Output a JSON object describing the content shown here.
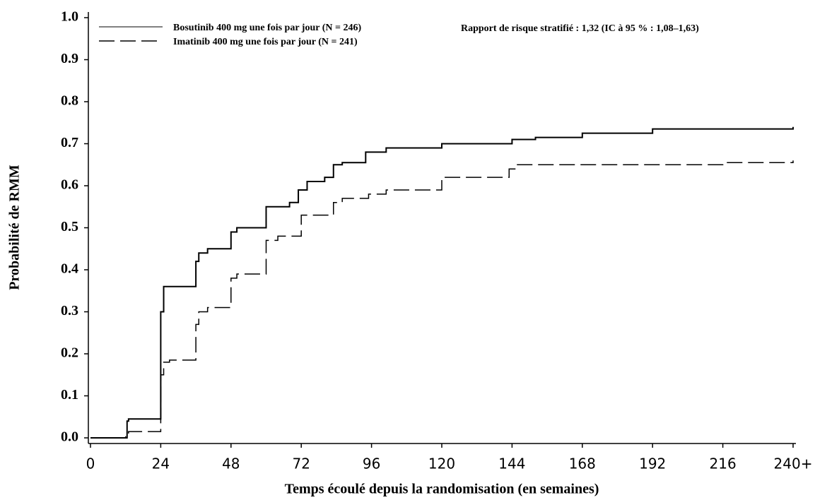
{
  "chart_data": {
    "type": "step",
    "xlabel": "Temps écoulé depuis la randomisation (en semaines)",
    "ylabel": "Probabilité de RMM",
    "annotation": "Rapport de risque stratifié : 1,32 (IC à 95 % : 1,08–1,63)",
    "xlim": [
      0,
      240
    ],
    "ylim": [
      0,
      1
    ],
    "xticks": [
      0,
      24,
      48,
      72,
      96,
      120,
      144,
      168,
      192,
      216,
      {
        "value": 240,
        "label": "240+"
      }
    ],
    "yticks": [
      {
        "value": 0,
        "label": "0.0"
      },
      0.1,
      0.2,
      0.3,
      0.4,
      0.5,
      0.6,
      0.7,
      0.8,
      0.9,
      {
        "value": 1,
        "label": "1.0"
      }
    ],
    "legend": "upper left",
    "series": [
      {
        "name": "Bosutinib 400 mg une fois par jour (N = 246)",
        "color": "#000000",
        "dash": "solid",
        "x": [
          0,
          12.5,
          13,
          24,
          25,
          36,
          37,
          40,
          48,
          50,
          60,
          68,
          71,
          74,
          80,
          83,
          86,
          94,
          101,
          120,
          144,
          152,
          168,
          192,
          240
        ],
        "values": [
          0,
          0.04,
          0.045,
          0.3,
          0.36,
          0.42,
          0.44,
          0.45,
          0.49,
          0.5,
          0.55,
          0.56,
          0.59,
          0.61,
          0.62,
          0.65,
          0.655,
          0.68,
          0.69,
          0.7,
          0.71,
          0.715,
          0.725,
          0.735,
          0.74
        ]
      },
      {
        "name": "Imatinib 400 mg une fois par jour (N = 241)",
        "color": "#000000",
        "dash": "dashed",
        "x": [
          0,
          12,
          13,
          24,
          25,
          27,
          36,
          37,
          40,
          48,
          50,
          60,
          64,
          72,
          79,
          83,
          86,
          95,
          101,
          120,
          143,
          145,
          192,
          216,
          240
        ],
        "values": [
          0,
          0.01,
          0.015,
          0.15,
          0.18,
          0.185,
          0.27,
          0.3,
          0.31,
          0.38,
          0.39,
          0.47,
          0.48,
          0.53,
          0.53,
          0.56,
          0.57,
          0.58,
          0.59,
          0.62,
          0.64,
          0.65,
          0.65,
          0.655,
          0.66
        ]
      }
    ]
  }
}
